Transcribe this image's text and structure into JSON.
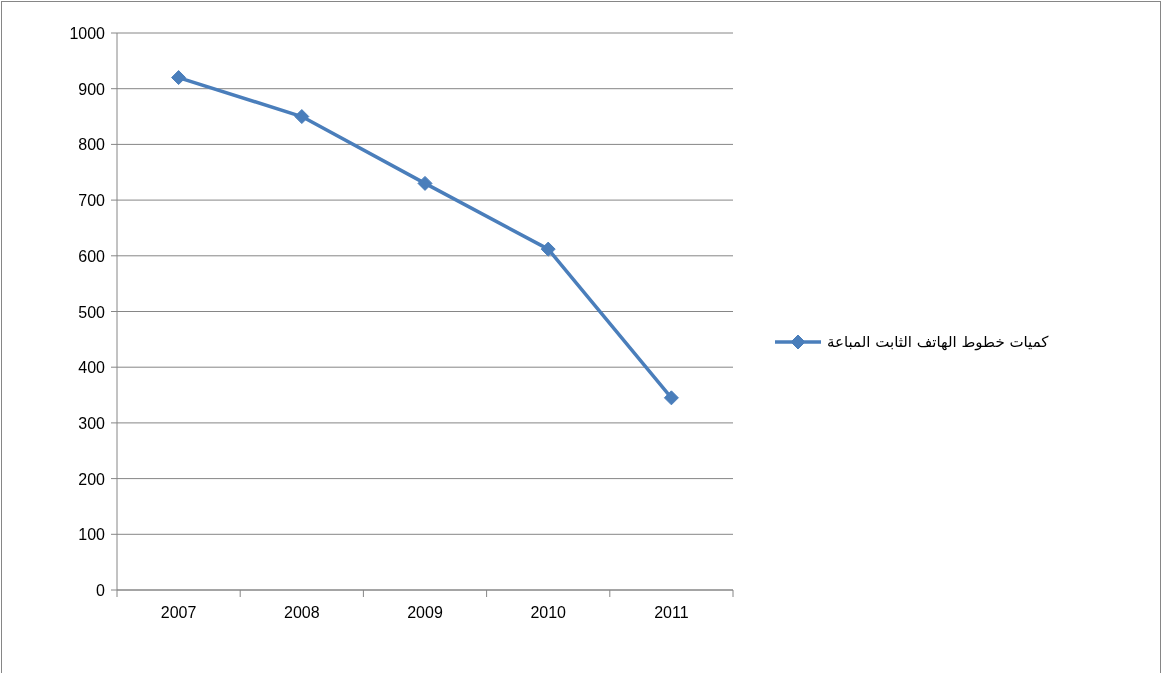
{
  "chart_data": {
    "type": "line",
    "categories": [
      "2007",
      "2008",
      "2009",
      "2010",
      "2011"
    ],
    "series": [
      {
        "name": "كميات خطوط الهاتف الثابت المباعة",
        "color": "#4a7ebb",
        "values": [
          920,
          850,
          730,
          612,
          345
        ]
      }
    ],
    "ylim": [
      0,
      1000
    ],
    "yticks": [
      0,
      100,
      200,
      300,
      400,
      500,
      600,
      700,
      800,
      900,
      1000
    ],
    "grid": "y",
    "legend": "right",
    "marker": "diamond",
    "line_style": "solid"
  }
}
